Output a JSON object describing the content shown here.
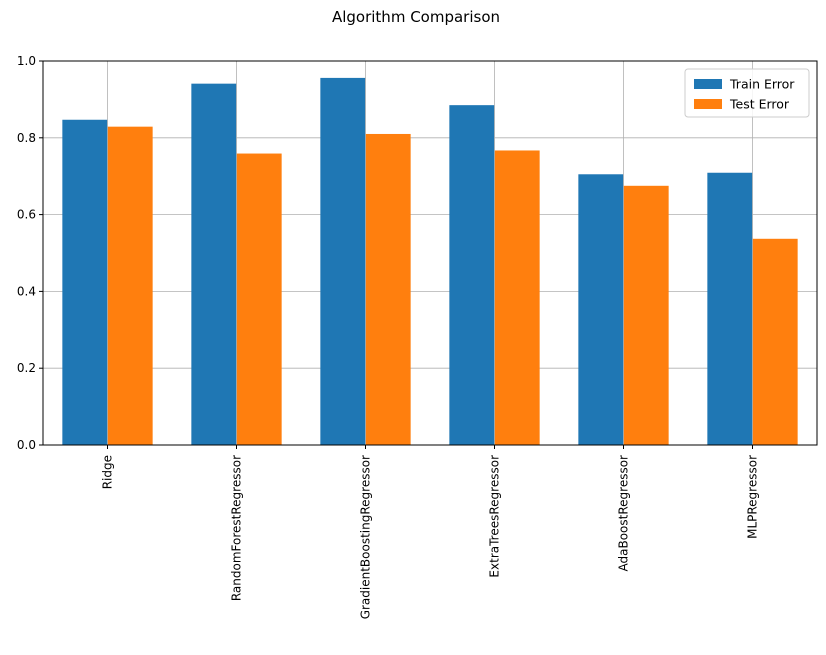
{
  "chart_data": {
    "type": "bar",
    "title": "Algorithm Comparison",
    "xlabel": "",
    "ylabel": "",
    "categories": [
      "Ridge",
      "RandomForestRegressor",
      "GradientBoostingRegressor",
      "ExtraTreesRegressor",
      "AdaBoostRegressor",
      "MLPRegressor"
    ],
    "series": [
      {
        "name": "Train Error",
        "color": "#1f77b4",
        "values": [
          0.847,
          0.941,
          0.956,
          0.885,
          0.705,
          0.709
        ]
      },
      {
        "name": "Test Error",
        "color": "#ff7f0e",
        "values": [
          0.829,
          0.759,
          0.81,
          0.767,
          0.675,
          0.537
        ]
      }
    ],
    "ylim": [
      0,
      1.0
    ],
    "yticks": [
      "0.0",
      "0.2",
      "0.4",
      "0.6",
      "0.8",
      "1.0"
    ],
    "ytick_values": [
      0,
      0.2,
      0.4,
      0.6,
      0.8,
      1.0
    ],
    "grid": true,
    "legend_position": "top-right"
  }
}
